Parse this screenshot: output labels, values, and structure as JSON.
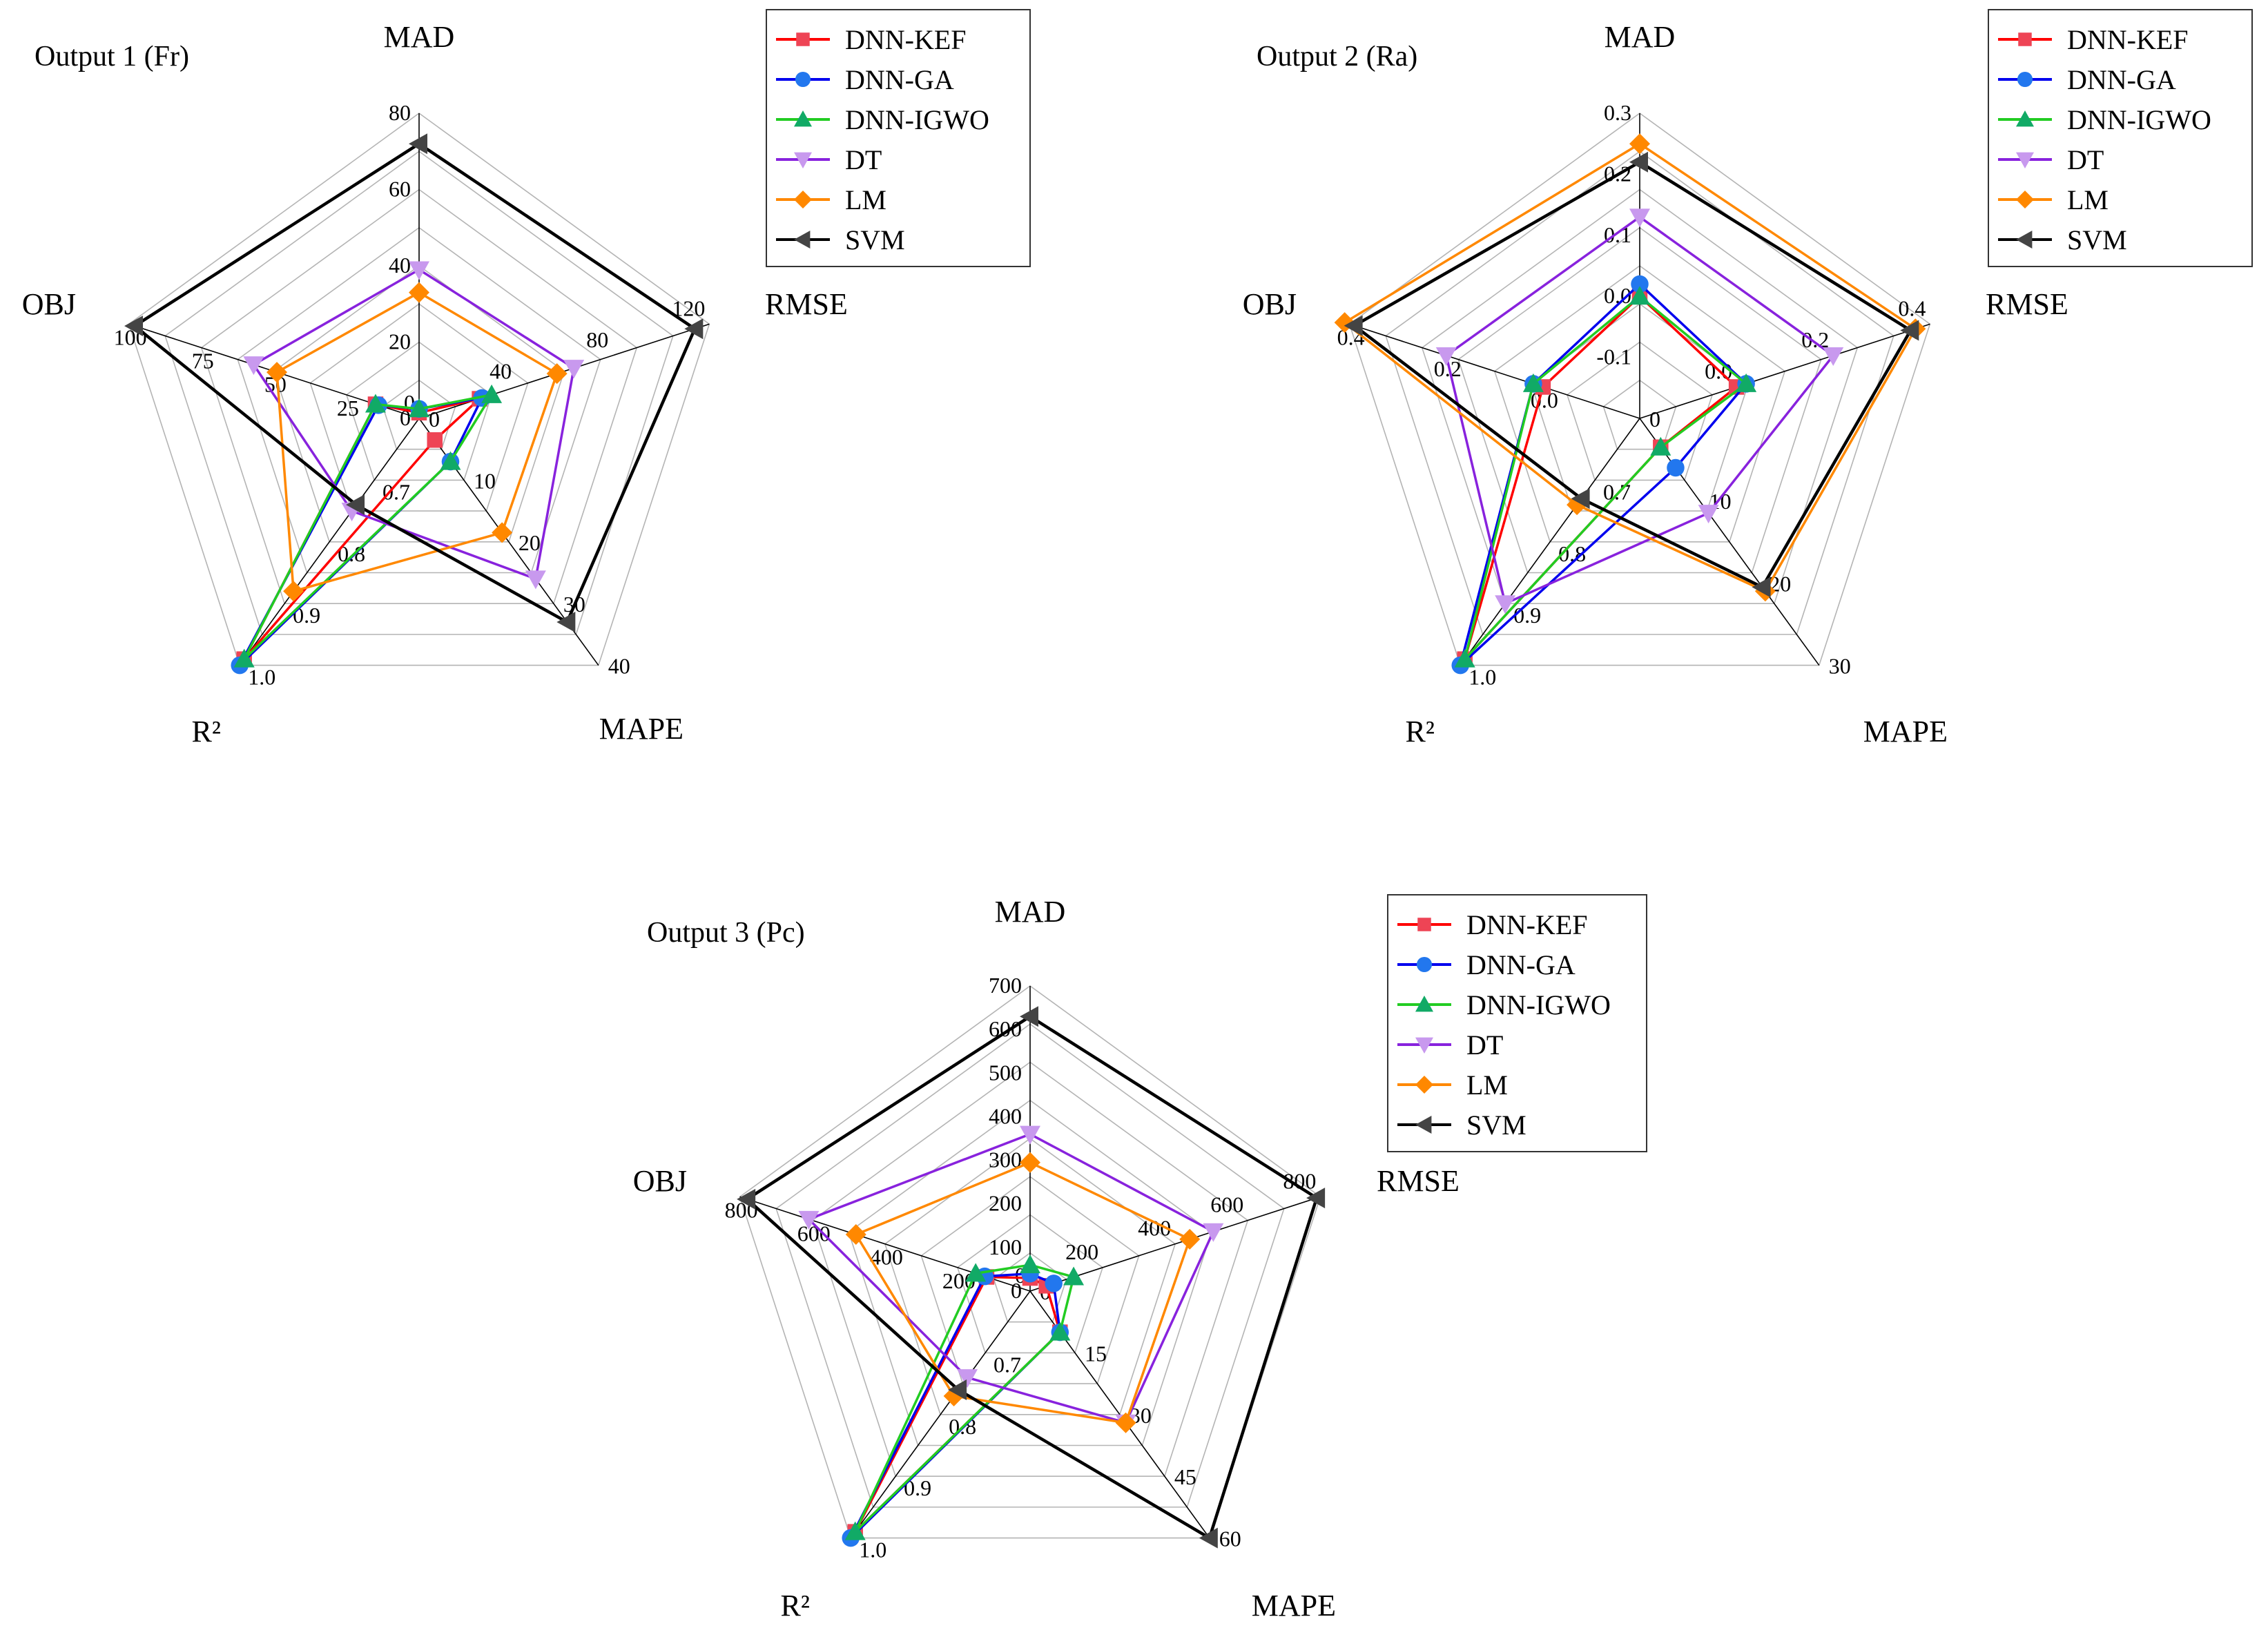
{
  "charts": [
    {
      "id": "output1",
      "chart_data": {
        "type": "radar",
        "title": "Output 1 (Fr)",
        "axes": [
          {
            "name": "MAD",
            "range": [
              0,
              80
            ],
            "ticks": [
              "0",
              "20",
              "40",
              "60",
              "80"
            ]
          },
          {
            "name": "RMSE",
            "range": [
              0,
              120
            ],
            "ticks": [
              "0",
              "40",
              "80",
              "120"
            ]
          },
          {
            "name": "MAPE",
            "range": [
              0,
              40
            ],
            "ticks": [
              "0",
              "10",
              "20",
              "30",
              "40"
            ]
          },
          {
            "name": "R²",
            "range": [
              0.6,
              1.0
            ],
            "ticks": [
              "0.7",
              "0.8",
              "0.9",
              "1.0"
            ]
          },
          {
            "name": "OBJ",
            "range": [
              0,
              100
            ],
            "ticks": [
              "25",
              "50",
              "75",
              "100"
            ]
          }
        ],
        "series": [
          {
            "name": "DNN-KEF",
            "values": [
              1.5,
              25,
              3.5,
              0.99,
              15
            ]
          },
          {
            "name": "DNN-GA",
            "values": [
              2.5,
              26,
              7,
              1.0,
              14
            ]
          },
          {
            "name": "DNN-IGWO",
            "values": [
              2.5,
              30,
              7,
              0.99,
              15
            ]
          },
          {
            "name": "DT",
            "values": [
              39,
              64,
              26,
              0.75,
              57
            ]
          },
          {
            "name": "LM",
            "values": [
              33,
              57,
              18.5,
              0.88,
              49
            ]
          },
          {
            "name": "SVM",
            "values": [
              72,
              114,
              33,
              0.74,
              98
            ]
          }
        ]
      }
    },
    {
      "id": "output2",
      "chart_data": {
        "type": "radar",
        "title": "Output 2 (Ra)",
        "axes": [
          {
            "name": "MAD",
            "range": [
              -0.2,
              0.3
            ],
            "ticks": [
              "-0.1",
              "0.0",
              "0.1",
              "0.2",
              "0.3"
            ]
          },
          {
            "name": "RMSE",
            "range": [
              -0.2,
              0.4
            ],
            "ticks": [
              "0.0",
              "0.2",
              "0.4"
            ]
          },
          {
            "name": "MAPE",
            "range": [
              0,
              30
            ],
            "ticks": [
              "0",
              "10",
              "20",
              "30"
            ]
          },
          {
            "name": "R²",
            "range": [
              0.6,
              1.0
            ],
            "ticks": [
              "0.7",
              "0.8",
              "0.9",
              "1.0"
            ]
          },
          {
            "name": "OBJ",
            "range": [
              -0.2,
              0.4
            ],
            "ticks": [
              "0.0",
              "0.2",
              "0.4"
            ]
          }
        ],
        "series": [
          {
            "name": "DNN-KEF",
            "values": [
              0.0,
              0.0,
              3.5,
              0.99,
              0.0
            ]
          },
          {
            "name": "DNN-GA",
            "values": [
              0.02,
              0.02,
              6,
              1.0,
              0.02
            ]
          },
          {
            "name": "DNN-IGWO",
            "values": [
              0.0,
              0.02,
              3.5,
              0.99,
              0.02
            ]
          },
          {
            "name": "DT",
            "values": [
              0.13,
              0.2,
              11.5,
              0.9,
              0.2
            ]
          },
          {
            "name": "LM",
            "values": [
              0.25,
              0.37,
              21,
              0.74,
              0.41
            ]
          },
          {
            "name": "SVM",
            "values": [
              0.22,
              0.36,
              20.5,
              0.73,
              0.39
            ]
          }
        ]
      }
    },
    {
      "id": "output3",
      "chart_data": {
        "type": "radar",
        "title": "Output 3 (Pc)",
        "axes": [
          {
            "name": "MAD",
            "range": [
              0,
              700
            ],
            "ticks": [
              "0",
              "100",
              "200",
              "300",
              "400",
              "500",
              "600",
              "700"
            ]
          },
          {
            "name": "RMSE",
            "range": [
              0,
              800
            ],
            "ticks": [
              "0",
              "200",
              "400",
              "600",
              "800"
            ]
          },
          {
            "name": "MAPE",
            "range": [
              0,
              60
            ],
            "ticks": [
              "0",
              "15",
              "30",
              "45",
              "60"
            ]
          },
          {
            "name": "R²",
            "range": [
              0.6,
              1.0
            ],
            "ticks": [
              "0.7",
              "0.8",
              "0.9",
              "1.0"
            ]
          },
          {
            "name": "OBJ",
            "range": [
              0,
              800
            ],
            "ticks": [
              "200",
              "400",
              "600",
              "800"
            ]
          }
        ],
        "series": [
          {
            "name": "DNN-KEF",
            "values": [
              30,
              45,
              10,
              0.99,
              120
            ]
          },
          {
            "name": "DNN-GA",
            "values": [
              40,
              65,
              10,
              1.0,
              125
            ]
          },
          {
            "name": "DNN-IGWO",
            "values": [
              60,
              120,
              10,
              0.99,
              150
            ]
          },
          {
            "name": "DT",
            "values": [
              360,
              505,
              32,
              0.74,
              610
            ]
          },
          {
            "name": "LM",
            "values": [
              295,
              440,
              32,
              0.77,
              480
            ]
          },
          {
            "name": "SVM",
            "values": [
              630,
              790,
              60,
              0.76,
              780
            ]
          }
        ]
      }
    }
  ],
  "legend": [
    {
      "name": "DNN-KEF",
      "color": "#ff0000",
      "marker": "square",
      "marker_color": "#ee4455"
    },
    {
      "name": "DNN-GA",
      "color": "#0000ee",
      "marker": "circle",
      "marker_color": "#2277ee"
    },
    {
      "name": "DNN-IGWO",
      "color": "#22cc22",
      "marker": "triangle-up",
      "marker_color": "#11aa66"
    },
    {
      "name": "DT",
      "color": "#8822dd",
      "marker": "triangle-down",
      "marker_color": "#c899ee"
    },
    {
      "name": "LM",
      "color": "#ff8800",
      "marker": "diamond",
      "marker_color": "#ff8800"
    },
    {
      "name": "SVM",
      "color": "#000000",
      "marker": "triangle-left",
      "marker_color": "#444444"
    }
  ]
}
